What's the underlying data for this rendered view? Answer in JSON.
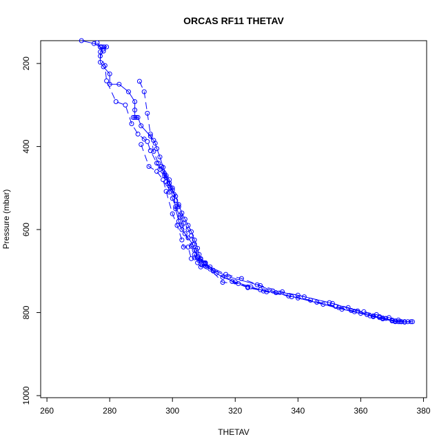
{
  "chart_data": {
    "type": "scatter",
    "title": "ORCAS RF11 THETAV",
    "xlabel": "THETAV",
    "ylabel": "Pressure (mbar)",
    "xlim": [
      258,
      381
    ],
    "ylim": [
      1005,
      145
    ],
    "y_reversed": true,
    "grid": false,
    "xticks": [
      260,
      280,
      300,
      320,
      340,
      360,
      380
    ],
    "yticks": [
      200,
      400,
      600,
      800,
      1000
    ],
    "series": [
      {
        "color": "#0000ff",
        "marker": "open-circle",
        "line": "solid",
        "points": [
          [
            271,
            145
          ],
          [
            275,
            152
          ],
          [
            277,
            160
          ],
          [
            278,
            165
          ],
          [
            279,
            160
          ],
          [
            277.5,
            160
          ],
          [
            278.2,
            160
          ],
          [
            277,
            172
          ],
          [
            277,
            197
          ],
          [
            278,
            208
          ],
          [
            280,
            225
          ],
          [
            280,
            250
          ],
          [
            283,
            250
          ],
          [
            286,
            268
          ],
          [
            288,
            292
          ],
          [
            288,
            312
          ],
          [
            288,
            330
          ],
          [
            287.5,
            330
          ],
          [
            288.5,
            330
          ],
          [
            289,
            330
          ],
          [
            290,
            350
          ],
          [
            293,
            375
          ],
          [
            294,
            385
          ],
          [
            294.5,
            392
          ],
          [
            295,
            405
          ],
          [
            296,
            425
          ],
          [
            297,
            450
          ],
          [
            298,
            470
          ],
          [
            299,
            488
          ],
          [
            300,
            505
          ],
          [
            301,
            520
          ],
          [
            302,
            540
          ],
          [
            303,
            560
          ],
          [
            304,
            575
          ],
          [
            305,
            590
          ],
          [
            306,
            605
          ],
          [
            307,
            625
          ],
          [
            308,
            645
          ],
          [
            308.5,
            660
          ],
          [
            309,
            672
          ],
          [
            310,
            680
          ],
          [
            310.5,
            688
          ],
          [
            313,
            700
          ],
          [
            316,
            715
          ],
          [
            320,
            726
          ],
          [
            325,
            738
          ],
          [
            328,
            745
          ],
          [
            333,
            752
          ],
          [
            340,
            765
          ],
          [
            348,
            780
          ],
          [
            354,
            792
          ],
          [
            360,
            802
          ],
          [
            364,
            810
          ],
          [
            367,
            815
          ],
          [
            370,
            820
          ],
          [
            372,
            822
          ],
          [
            374,
            823
          ],
          [
            376,
            822
          ]
        ]
      },
      {
        "color": "#0000ff",
        "marker": "open-circle",
        "line": "dashed",
        "points": [
          [
            276,
            150
          ],
          [
            277,
            160
          ],
          [
            278,
            170
          ],
          [
            277,
            182
          ],
          [
            278.5,
            205
          ],
          [
            279,
            242
          ],
          [
            282,
            292
          ],
          [
            285,
            300
          ],
          [
            287,
            345
          ],
          [
            289,
            370
          ],
          [
            291,
            382
          ],
          [
            292,
            388
          ],
          [
            293,
            410
          ],
          [
            295,
            440
          ],
          [
            296,
            455
          ],
          [
            297.5,
            465
          ],
          [
            298,
            485
          ],
          [
            299,
            495
          ],
          [
            300,
            500
          ],
          [
            301,
            530
          ],
          [
            302,
            545
          ],
          [
            302.5,
            565
          ],
          [
            303,
            590
          ],
          [
            304,
            610
          ],
          [
            306,
            640
          ],
          [
            307,
            660
          ],
          [
            308,
            680
          ],
          [
            309,
            690
          ],
          [
            310.5,
            682
          ],
          [
            312,
            695
          ],
          [
            316,
            727
          ],
          [
            321,
            730
          ],
          [
            324,
            738
          ],
          [
            330,
            750
          ],
          [
            338,
            762
          ],
          [
            346,
            775
          ],
          [
            353,
            788
          ],
          [
            358,
            798
          ],
          [
            363,
            808
          ],
          [
            366,
            812
          ],
          [
            368,
            814
          ],
          [
            371,
            822
          ],
          [
            373,
            822
          ]
        ]
      },
      {
        "color": "#0000ff",
        "marker": "open-circle",
        "line": "dashed",
        "points": [
          [
            289.5,
            243
          ],
          [
            291,
            268
          ],
          [
            292,
            320
          ],
          [
            293,
            370
          ],
          [
            294,
            412
          ],
          [
            295.5,
            440
          ],
          [
            297,
            460
          ],
          [
            298,
            475
          ],
          [
            298.5,
            490
          ],
          [
            299,
            510
          ],
          [
            300,
            525
          ],
          [
            301,
            545
          ],
          [
            302.5,
            570
          ],
          [
            303.5,
            585
          ],
          [
            305,
            600
          ],
          [
            306,
            615
          ],
          [
            307,
            635
          ],
          [
            307.5,
            650
          ],
          [
            308,
            665
          ],
          [
            309,
            676
          ],
          [
            310.5,
            683
          ],
          [
            312,
            690
          ],
          [
            317,
            708
          ],
          [
            322,
            718
          ],
          [
            328,
            735
          ],
          [
            335,
            750
          ],
          [
            342,
            762
          ],
          [
            350,
            776
          ],
          [
            356,
            788
          ],
          [
            361,
            798
          ],
          [
            365,
            805
          ],
          [
            369,
            812
          ],
          [
            372,
            818
          ],
          [
            374,
            822
          ],
          [
            376.5,
            822
          ]
        ]
      },
      {
        "color": "#0000ff",
        "marker": "open-circle",
        "line": "dashed",
        "points": [
          [
            290,
            395
          ],
          [
            292.5,
            448
          ],
          [
            295,
            460
          ],
          [
            297,
            480
          ],
          [
            298,
            508
          ],
          [
            300,
            562
          ],
          [
            301.5,
            590
          ],
          [
            303,
            625
          ],
          [
            303.5,
            642
          ],
          [
            305,
            642
          ],
          [
            306,
            670
          ],
          [
            307,
            668
          ],
          [
            308.5,
            675
          ],
          [
            309.5,
            685
          ],
          [
            311,
            690
          ],
          [
            314,
            705
          ],
          [
            319,
            725
          ],
          [
            324,
            740
          ],
          [
            329,
            748
          ],
          [
            337,
            760
          ],
          [
            344,
            770
          ],
          [
            352,
            785
          ],
          [
            357,
            795
          ],
          [
            362,
            805
          ],
          [
            366,
            810
          ],
          [
            370,
            818
          ],
          [
            372.5,
            822
          ],
          [
            375,
            822
          ]
        ]
      },
      {
        "color": "#0000ff",
        "marker": "open-circle",
        "line": "solid",
        "points": [
          [
            296.5,
            448
          ],
          [
            297.5,
            470
          ],
          [
            299,
            480
          ],
          [
            299.5,
            500
          ],
          [
            300.5,
            515
          ],
          [
            301,
            550
          ],
          [
            302,
            580
          ],
          [
            303,
            600
          ],
          [
            305,
            620
          ],
          [
            306.5,
            636
          ],
          [
            307,
            650
          ],
          [
            308,
            668
          ],
          [
            309,
            670
          ],
          [
            310.5,
            680
          ],
          [
            313,
            698
          ],
          [
            318,
            714
          ],
          [
            327,
            733
          ],
          [
            332,
            748
          ],
          [
            340,
            758
          ],
          [
            351,
            778
          ],
          [
            359,
            796
          ],
          [
            364,
            808
          ],
          [
            367,
            813
          ],
          [
            371,
            820
          ],
          [
            373,
            822
          ]
        ]
      }
    ]
  }
}
